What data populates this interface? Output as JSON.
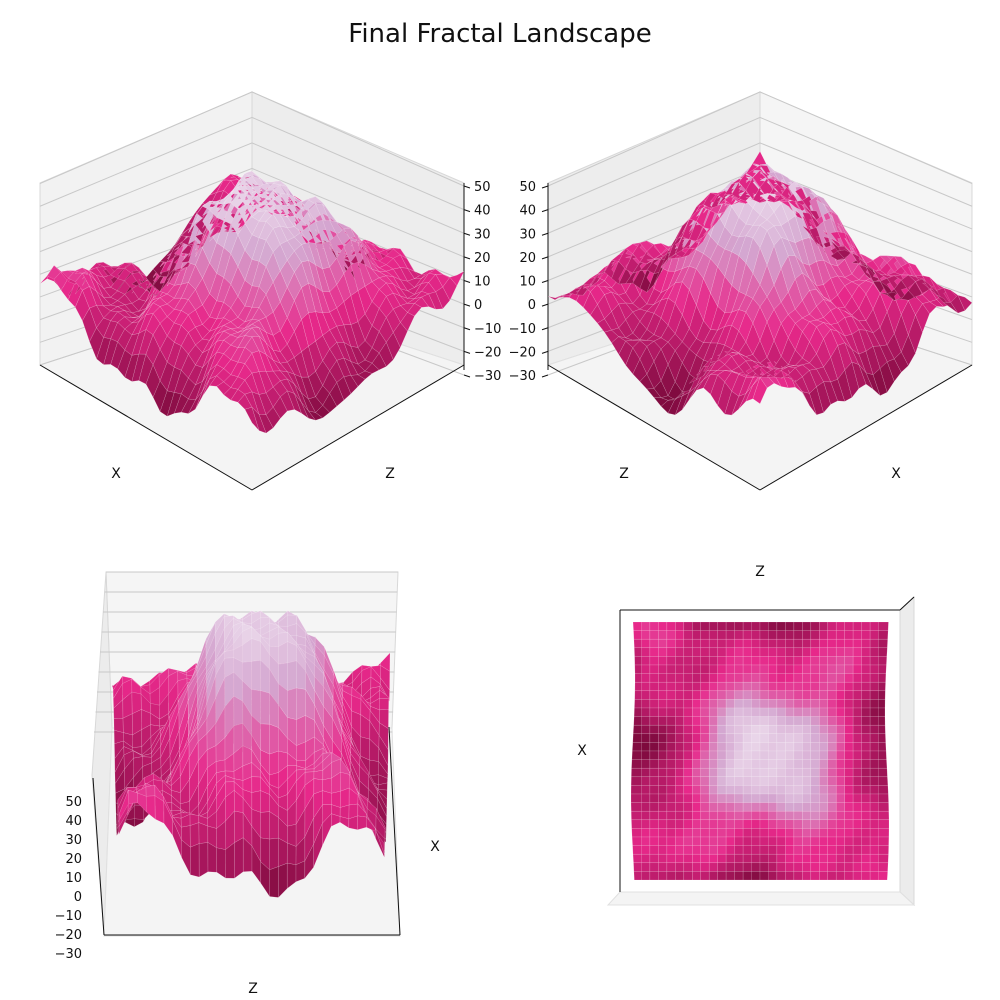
{
  "figure": {
    "title": "Final Fractal Landscape"
  },
  "palette": {
    "low": "#6b0530",
    "mid": "#e7288a",
    "soft": "#d4a6d0",
    "high": "#f6f1f8"
  },
  "chart_data": [
    {
      "type": "surface",
      "view": "elevated-left",
      "xlabel": "X",
      "zlabel": "Z",
      "zticks": [
        -30,
        -20,
        -10,
        0,
        10,
        20,
        30,
        40,
        50
      ],
      "zlim": [
        -30,
        50
      ],
      "grid": true
    },
    {
      "type": "surface",
      "view": "elevated-right",
      "xlabel": "X",
      "zlabel": "Z",
      "zticks": [
        -30,
        -20,
        -10,
        0,
        10,
        20,
        30,
        40,
        50
      ],
      "zlim": [
        -30,
        50
      ],
      "grid": true
    },
    {
      "type": "surface",
      "view": "side-low",
      "xlabel": "X",
      "zlabel": "Z",
      "zticks": [
        -30,
        -20,
        -10,
        0,
        10,
        20,
        30,
        40,
        50
      ],
      "zlim": [
        -30,
        50
      ],
      "grid": true
    },
    {
      "type": "surface",
      "view": "top-down",
      "xlabel": "X",
      "zlabel": "Z",
      "grid": false
    }
  ]
}
